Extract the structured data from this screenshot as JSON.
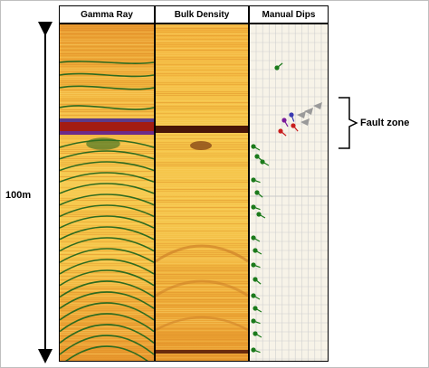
{
  "tracks": [
    {
      "label": "Gamma Ray"
    },
    {
      "label": "Bulk Density"
    },
    {
      "label": "Manual Dips"
    }
  ],
  "scale_label": "100m",
  "fault_label": "Fault zone",
  "colors": {
    "log_yellow": "#f6c64a",
    "log_orange": "#e9902a",
    "log_dark": "#7a1f10",
    "sinusoid_green": "#2e6b1f",
    "dip_green": "#1b7a1b",
    "grid_line": "#c9c9c9"
  }
}
